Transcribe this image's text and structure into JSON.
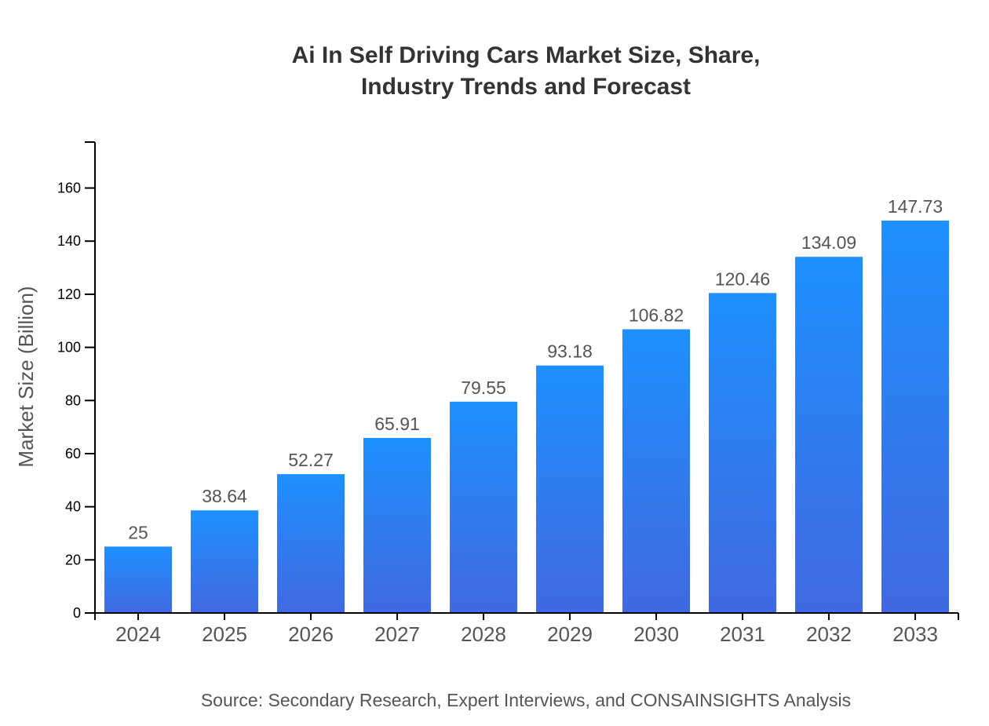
{
  "chart_data": {
    "type": "bar",
    "title_lines": [
      "Ai In Self Driving Cars Market Size, Share,",
      "Industry Trends and Forecast"
    ],
    "xlabel": "",
    "ylabel": "Market Size (Billion)",
    "categories": [
      "2024",
      "2025",
      "2026",
      "2027",
      "2028",
      "2029",
      "2030",
      "2031",
      "2032",
      "2033"
    ],
    "values": [
      25,
      38.64,
      52.27,
      65.91,
      79.55,
      93.18,
      106.82,
      120.46,
      134.09,
      147.73
    ],
    "value_labels": [
      "25",
      "38.64",
      "52.27",
      "65.91",
      "79.55",
      "93.18",
      "106.82",
      "120.46",
      "134.09",
      "147.73"
    ],
    "ylim": [
      0,
      177.3
    ],
    "yticks": [
      0,
      20,
      40,
      60,
      80,
      100,
      120,
      140,
      160
    ],
    "grid": false,
    "legend": "none",
    "colors": {
      "bar_top": "#1e90ff",
      "bar_bottom": "#4169e1",
      "text": "#555555",
      "title": "#333333"
    }
  },
  "source": "Source: Secondary Research, Expert Interviews, and CONSAINSIGHTS Analysis"
}
